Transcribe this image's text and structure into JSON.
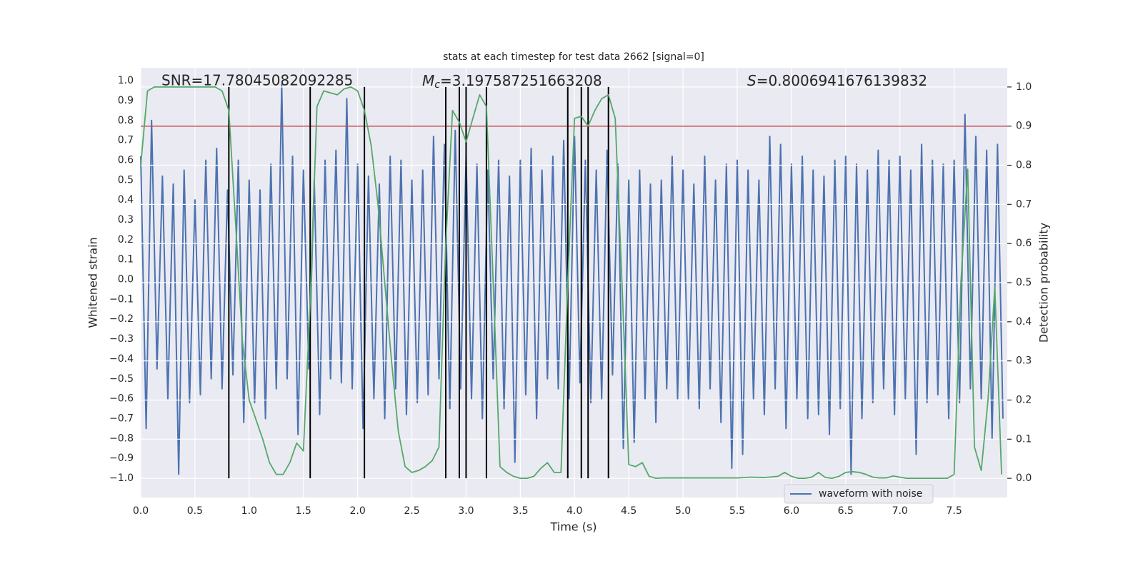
{
  "chart_data": {
    "type": "line",
    "title": "stats at each timestep for test data 2662 [signal=0]",
    "xlabel": "Time (s)",
    "ylabel": "Whitened strain",
    "y2label": "Detection probability",
    "annotations": {
      "snr": "SNR=17.78045082092285",
      "mc": {
        "symbol": "M",
        "subscript": "c",
        "text": "=3.197587251663208"
      },
      "s": {
        "symbol": "S",
        "text": "=0.8006941676139832"
      }
    },
    "xlim": [
      0,
      7.99
    ],
    "ylim": [
      -1.097,
      1.065
    ],
    "y2lim": [
      -0.049,
      1.049
    ],
    "xticks": [
      {
        "value": 0,
        "label": "0.0"
      },
      {
        "value": 0.5,
        "label": "0.5"
      },
      {
        "value": 1,
        "label": "1.0"
      },
      {
        "value": 1.5,
        "label": "1.5"
      },
      {
        "value": 2,
        "label": "2.0"
      },
      {
        "value": 2.5,
        "label": "2.5"
      },
      {
        "value": 3,
        "label": "3.0"
      },
      {
        "value": 3.5,
        "label": "3.5"
      },
      {
        "value": 4,
        "label": "4.0"
      },
      {
        "value": 4.5,
        "label": "4.5"
      },
      {
        "value": 5,
        "label": "5.0"
      },
      {
        "value": 5.5,
        "label": "5.5"
      },
      {
        "value": 6,
        "label": "6.0"
      },
      {
        "value": 6.5,
        "label": "6.5"
      },
      {
        "value": 7,
        "label": "7.0"
      },
      {
        "value": 7.5,
        "label": "7.5"
      }
    ],
    "yticks": [
      {
        "value": 1,
        "label": "1.0"
      },
      {
        "value": 0.9,
        "label": "0.9"
      },
      {
        "value": 0.8,
        "label": "0.8"
      },
      {
        "value": 0.7,
        "label": "0.7"
      },
      {
        "value": 0.6,
        "label": "0.6"
      },
      {
        "value": 0.5,
        "label": "0.5"
      },
      {
        "value": 0.4,
        "label": "0.4"
      },
      {
        "value": 0.3,
        "label": "0.3"
      },
      {
        "value": 0.2,
        "label": "0.2"
      },
      {
        "value": 0.1,
        "label": "0.1"
      },
      {
        "value": 0,
        "label": "0.0"
      },
      {
        "value": -0.1,
        "label": "−0.1"
      },
      {
        "value": -0.2,
        "label": "−0.2"
      },
      {
        "value": -0.3,
        "label": "−0.3"
      },
      {
        "value": -0.4,
        "label": "−0.4"
      },
      {
        "value": -0.5,
        "label": "−0.5"
      },
      {
        "value": -0.6,
        "label": "−0.6"
      },
      {
        "value": -0.7,
        "label": "−0.7"
      },
      {
        "value": -0.8,
        "label": "−0.8"
      },
      {
        "value": -0.9,
        "label": "−0.9"
      },
      {
        "value": -1,
        "label": "−1.0"
      }
    ],
    "y2ticks": [
      {
        "value": 0,
        "label": "0.0"
      },
      {
        "value": 0.1,
        "label": "0.1"
      },
      {
        "value": 0.2,
        "label": "0.2"
      },
      {
        "value": 0.3,
        "label": "0.3"
      },
      {
        "value": 0.4,
        "label": "0.4"
      },
      {
        "value": 0.5,
        "label": "0.5"
      },
      {
        "value": 0.6,
        "label": "0.6"
      },
      {
        "value": 0.7,
        "label": "0.7"
      },
      {
        "value": 0.8,
        "label": "0.8"
      },
      {
        "value": 0.9,
        "label": "0.9"
      },
      {
        "value": 1,
        "label": "1.0"
      }
    ],
    "grid": true,
    "legend": "lower right",
    "threshold": {
      "value": 0.9,
      "color": "#c44e52",
      "axis": "y2"
    },
    "vlines": {
      "color": "#000000",
      "x": [
        0.8125,
        1.5625,
        2.0625,
        2.8125,
        2.9375,
        3.0,
        3.1875,
        3.9375,
        4.0625,
        4.125,
        4.3125
      ],
      "ymin": 0,
      "ymax": 1,
      "axis": "y2"
    },
    "series": [
      {
        "name": "waveform with noise",
        "color": "#4c72b0",
        "x": [
          0,
          0.05,
          0.1,
          0.15,
          0.2,
          0.25,
          0.3,
          0.35,
          0.4,
          0.45,
          0.5,
          0.55,
          0.6,
          0.65,
          0.7,
          0.75,
          0.8,
          0.85,
          0.9,
          0.95,
          1,
          1.05,
          1.1,
          1.15,
          1.2,
          1.25,
          1.3,
          1.35,
          1.4,
          1.45,
          1.5,
          1.55,
          1.6,
          1.65,
          1.7,
          1.75,
          1.8,
          1.85,
          1.9,
          1.95,
          2,
          2.05,
          2.1,
          2.15,
          2.2,
          2.25,
          2.3,
          2.35,
          2.4,
          2.45,
          2.5,
          2.55,
          2.6,
          2.65,
          2.7,
          2.75,
          2.8,
          2.85,
          2.9,
          2.95,
          3,
          3.05,
          3.1,
          3.15,
          3.2,
          3.25,
          3.3,
          3.35,
          3.4,
          3.45,
          3.5,
          3.55,
          3.6,
          3.65,
          3.7,
          3.75,
          3.8,
          3.85,
          3.9,
          3.95,
          4,
          4.05,
          4.1,
          4.15,
          4.2,
          4.25,
          4.3,
          4.35,
          4.4,
          4.45,
          4.5,
          4.55,
          4.6,
          4.65,
          4.7,
          4.75,
          4.8,
          4.85,
          4.9,
          4.95,
          5,
          5.05,
          5.1,
          5.15,
          5.2,
          5.25,
          5.3,
          5.35,
          5.4,
          5.45,
          5.5,
          5.55,
          5.6,
          5.65,
          5.7,
          5.75,
          5.8,
          5.85,
          5.9,
          5.95,
          6,
          6.05,
          6.1,
          6.15,
          6.2,
          6.25,
          6.3,
          6.35,
          6.4,
          6.45,
          6.5,
          6.55,
          6.6,
          6.65,
          6.7,
          6.75,
          6.8,
          6.85,
          6.9,
          6.95,
          7,
          7.05,
          7.1,
          7.15,
          7.2,
          7.25,
          7.3,
          7.35,
          7.4,
          7.45,
          7.5,
          7.55,
          7.6,
          7.65,
          7.7,
          7.75,
          7.8,
          7.85,
          7.9,
          7.95
        ],
        "values": [
          0.62,
          -0.75,
          0.8,
          -0.45,
          0.52,
          -0.6,
          0.48,
          -0.98,
          0.55,
          -0.62,
          0.4,
          -0.58,
          0.6,
          -0.5,
          0.66,
          -0.55,
          0.45,
          -0.48,
          0.6,
          -0.72,
          0.5,
          -0.62,
          0.45,
          -0.7,
          0.58,
          -0.55,
          0.98,
          -0.5,
          0.62,
          -0.78,
          0.55,
          -0.45,
          0.5,
          -0.68,
          0.6,
          -0.5,
          0.65,
          -0.52,
          0.91,
          -0.55,
          0.58,
          -0.75,
          0.52,
          -0.6,
          0.48,
          -0.7,
          0.62,
          -0.55,
          0.6,
          -0.68,
          0.5,
          -0.62,
          0.55,
          -0.58,
          0.72,
          -0.5,
          0.68,
          -0.65,
          0.75,
          -0.55,
          0.62,
          -0.6,
          0.58,
          -0.7,
          0.55,
          -0.5,
          0.6,
          -0.65,
          0.52,
          -0.92,
          0.6,
          -0.58,
          0.66,
          -0.7,
          0.55,
          -0.5,
          0.62,
          -0.55,
          0.7,
          -0.6,
          0.72,
          -0.52,
          0.6,
          -0.62,
          0.55,
          -0.6,
          0.65,
          -0.48,
          0.58,
          -0.85,
          0.5,
          -0.82,
          0.55,
          -0.6,
          0.48,
          -0.72,
          0.5,
          -0.55,
          0.62,
          -0.6,
          0.55,
          -0.6,
          0.48,
          -0.65,
          0.62,
          -0.55,
          0.5,
          -0.72,
          0.58,
          -0.95,
          0.6,
          -0.88,
          0.55,
          -0.6,
          0.5,
          -0.68,
          0.72,
          -0.55,
          0.68,
          -0.75,
          0.58,
          -0.6,
          0.62,
          -0.7,
          0.55,
          -0.68,
          0.52,
          -0.78,
          0.6,
          -0.65,
          0.62,
          -0.98,
          0.58,
          -0.7,
          0.55,
          -0.62,
          0.65,
          -0.55,
          0.6,
          -0.68,
          0.62,
          -0.6,
          0.55,
          -0.88,
          0.68,
          -0.62,
          0.6,
          -0.58,
          0.58,
          -0.7,
          0.6,
          -0.62,
          0.83,
          -0.55,
          0.72,
          -0.6,
          0.65,
          -0.8,
          0.68,
          -0.7
        ]
      },
      {
        "color": "#55a868",
        "axis": "y2",
        "x": [
          0,
          0.0625,
          0.125,
          0.4375,
          0.6875,
          0.75,
          0.8125,
          0.875,
          0.9375,
          1,
          1.0625,
          1.125,
          1.1875,
          1.25,
          1.3125,
          1.375,
          1.4375,
          1.5,
          1.5625,
          1.625,
          1.6875,
          1.75,
          1.8125,
          1.875,
          1.9375,
          2,
          2.0625,
          2.125,
          2.1875,
          2.25,
          2.3125,
          2.375,
          2.4375,
          2.5,
          2.5625,
          2.625,
          2.6875,
          2.75,
          2.8125,
          2.875,
          2.9375,
          3,
          3.0625,
          3.125,
          3.1875,
          3.25,
          3.3125,
          3.375,
          3.4375,
          3.5,
          3.5625,
          3.625,
          3.6875,
          3.75,
          3.8125,
          3.875,
          3.9375,
          4,
          4.0625,
          4.125,
          4.1875,
          4.25,
          4.3125,
          4.375,
          4.4375,
          4.5,
          4.5625,
          4.625,
          4.6875,
          4.75,
          4.8125,
          5.5,
          5.625,
          5.75,
          5.875,
          5.9375,
          6,
          6.0625,
          6.125,
          6.1875,
          6.25,
          6.3125,
          6.375,
          6.4375,
          6.5,
          6.5625,
          6.625,
          6.6875,
          6.75,
          6.8125,
          6.875,
          6.9375,
          7,
          7.0625,
          7.4375,
          7.5,
          7.5625,
          7.625,
          7.6875,
          7.75,
          7.8125,
          7.875,
          7.9375
        ],
        "values": [
          0.8,
          0.99,
          1,
          1,
          1,
          0.99,
          0.94,
          0.65,
          0.35,
          0.2,
          0.15,
          0.1,
          0.04,
          0.01,
          0.01,
          0.04,
          0.09,
          0.07,
          0.45,
          0.95,
          0.99,
          0.985,
          0.98,
          0.995,
          1,
          0.99,
          0.94,
          0.85,
          0.7,
          0.5,
          0.3,
          0.12,
          0.03,
          0.015,
          0.02,
          0.03,
          0.045,
          0.08,
          0.6,
          0.94,
          0.91,
          0.86,
          0.92,
          0.98,
          0.95,
          0.5,
          0.03,
          0.015,
          0.005,
          0,
          0,
          0.005,
          0.025,
          0.04,
          0.015,
          0.015,
          0.5,
          0.92,
          0.925,
          0.9,
          0.94,
          0.97,
          0.98,
          0.92,
          0.5,
          0.035,
          0.03,
          0.04,
          0.005,
          0,
          0.001,
          0.001,
          0.003,
          0.002,
          0.005,
          0.015,
          0.005,
          0,
          0,
          0.003,
          0.015,
          0.002,
          0,
          0.005,
          0.015,
          0.017,
          0.015,
          0.01,
          0.003,
          0.001,
          0.001,
          0.006,
          0.003,
          0,
          0,
          0.01,
          0.5,
          0.79,
          0.08,
          0.02,
          0.2,
          0.49,
          0.01
        ]
      }
    ]
  }
}
